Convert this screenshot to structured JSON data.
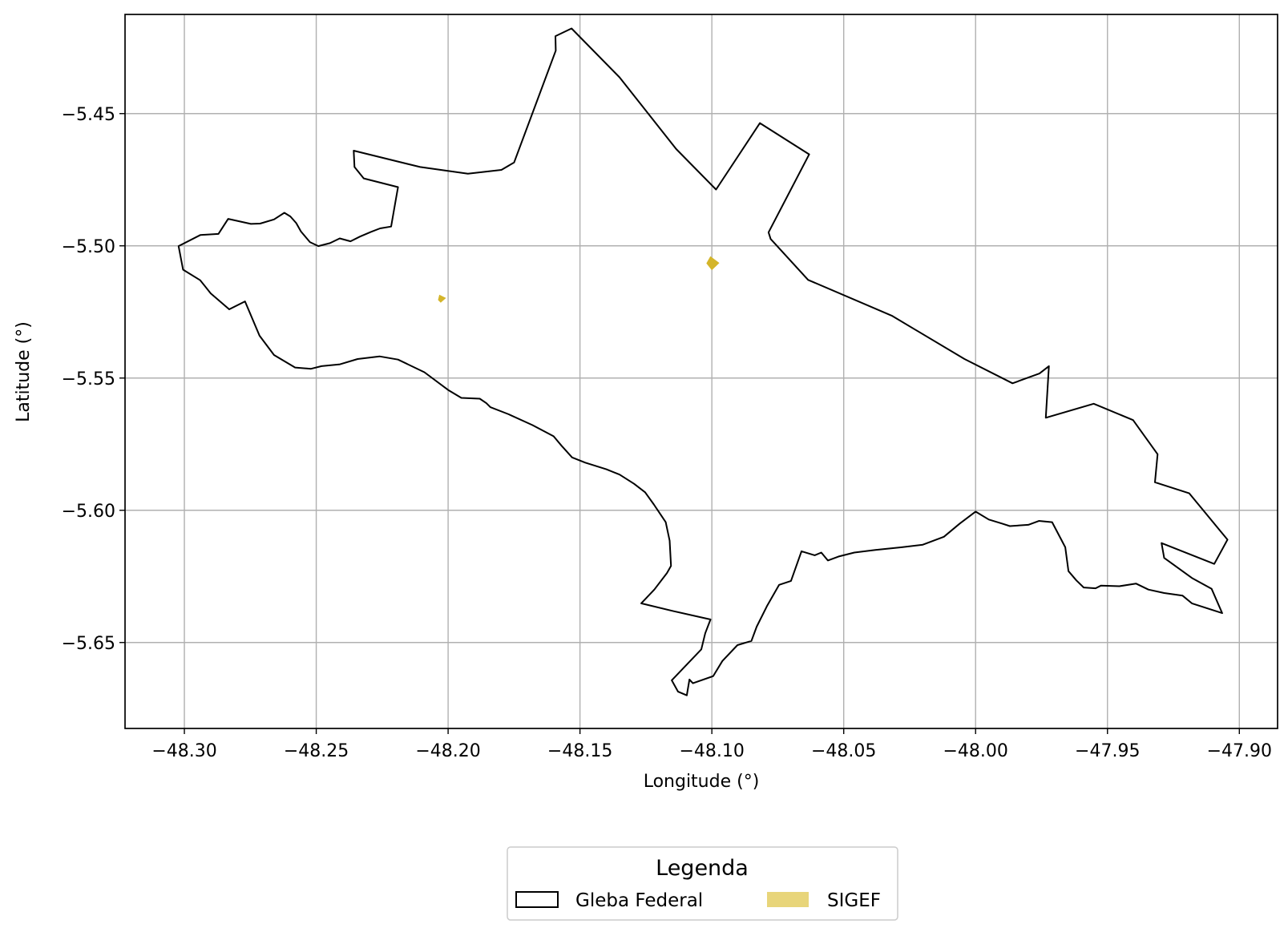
{
  "map": {
    "xlabel": "Longitude (°)",
    "ylabel": "Latitude (°)",
    "xlim": [
      -48.3225,
      -47.8855
    ],
    "ylim": [
      -5.6825,
      -5.4125
    ],
    "x_ticks": [
      -48.3,
      -48.25,
      -48.2,
      -48.15,
      -48.1,
      -48.05,
      -48.0,
      -47.95,
      -47.9
    ],
    "x_tick_labels": [
      "−48.30",
      "−48.25",
      "−48.20",
      "−48.15",
      "−48.10",
      "−48.05",
      "−48.00",
      "−47.95",
      "−47.90"
    ],
    "y_ticks": [
      -5.45,
      -5.5,
      -5.55,
      -5.6,
      -5.65
    ],
    "y_tick_labels": [
      "−5.45",
      "−5.50",
      "−5.55",
      "−5.60",
      "−5.65"
    ],
    "grid": true,
    "colors": {
      "boundary": "#000000",
      "sigef": "#d4b52a",
      "sigef_legend": "#e8d57a",
      "grid": "#b0b0b0"
    }
  },
  "legend": {
    "title": "Legenda",
    "placement": "bottom-center",
    "items": [
      {
        "label": "Gleba Federal",
        "symbol": "outline-rectangle"
      },
      {
        "label": "SIGEF",
        "symbol": "filled-rectangle"
      }
    ]
  },
  "layers": {
    "gleba_federal": {
      "name": "Gleba Federal",
      "coordinates": [
        [
          -48.3022,
          -5.5001
        ],
        [
          -48.2939,
          -5.4959
        ],
        [
          -48.2871,
          -5.4955
        ],
        [
          -48.2834,
          -5.4898
        ],
        [
          -48.2748,
          -5.4917
        ],
        [
          -48.2713,
          -5.4916
        ],
        [
          -48.266,
          -5.49
        ],
        [
          -48.2621,
          -5.4875
        ],
        [
          -48.2598,
          -5.4889
        ],
        [
          -48.2576,
          -5.4914
        ],
        [
          -48.2558,
          -5.4946
        ],
        [
          -48.2524,
          -5.4986
        ],
        [
          -48.2492,
          -5.5001
        ],
        [
          -48.2448,
          -5.499
        ],
        [
          -48.2411,
          -5.4972
        ],
        [
          -48.237,
          -5.4983
        ],
        [
          -48.2334,
          -5.4965
        ],
        [
          -48.2292,
          -5.4947
        ],
        [
          -48.2258,
          -5.4934
        ],
        [
          -48.2216,
          -5.4927
        ],
        [
          -48.2205,
          -5.4864
        ],
        [
          -48.219,
          -5.4778
        ],
        [
          -48.232,
          -5.4745
        ],
        [
          -48.2355,
          -5.4702
        ],
        [
          -48.2358,
          -5.464
        ],
        [
          -48.2106,
          -5.4702
        ],
        [
          -48.1925,
          -5.4727
        ],
        [
          -48.1798,
          -5.4713
        ],
        [
          -48.175,
          -5.4685
        ],
        [
          -48.1592,
          -5.4262
        ],
        [
          -48.1593,
          -5.4207
        ],
        [
          -48.1532,
          -5.4178
        ],
        [
          -48.135,
          -5.4363
        ],
        [
          -48.1135,
          -5.4634
        ],
        [
          -48.0984,
          -5.4787
        ],
        [
          -48.0818,
          -5.4536
        ],
        [
          -48.0631,
          -5.4654
        ],
        [
          -48.0785,
          -5.4949
        ],
        [
          -48.0777,
          -5.4974
        ],
        [
          -48.0635,
          -5.5129
        ],
        [
          -48.0318,
          -5.5264
        ],
        [
          -48.0042,
          -5.5428
        ],
        [
          -47.986,
          -5.552
        ],
        [
          -47.9758,
          -5.5483
        ],
        [
          -47.9722,
          -5.5455
        ],
        [
          -47.9734,
          -5.565
        ],
        [
          -47.9552,
          -5.5597
        ],
        [
          -47.9403,
          -5.5659
        ],
        [
          -47.931,
          -5.5788
        ],
        [
          -47.932,
          -5.5894
        ],
        [
          -47.919,
          -5.5936
        ],
        [
          -47.9045,
          -5.6111
        ],
        [
          -47.9095,
          -5.6203
        ],
        [
          -47.9295,
          -5.6124
        ],
        [
          -47.9285,
          -5.618
        ],
        [
          -47.918,
          -5.6256
        ],
        [
          -47.9105,
          -5.6297
        ],
        [
          -47.9065,
          -5.6389
        ],
        [
          -47.918,
          -5.6352
        ],
        [
          -47.9215,
          -5.6323
        ],
        [
          -47.9285,
          -5.6313
        ],
        [
          -47.9345,
          -5.63
        ],
        [
          -47.9392,
          -5.6277
        ],
        [
          -47.9455,
          -5.6287
        ],
        [
          -47.9525,
          -5.6285
        ],
        [
          -47.9545,
          -5.6295
        ],
        [
          -47.959,
          -5.6292
        ],
        [
          -47.9618,
          -5.6265
        ],
        [
          -47.9648,
          -5.623
        ],
        [
          -47.966,
          -5.614
        ],
        [
          -47.971,
          -5.6045
        ],
        [
          -47.976,
          -5.604
        ],
        [
          -47.98,
          -5.6055
        ],
        [
          -47.987,
          -5.606
        ],
        [
          -47.99,
          -5.605
        ],
        [
          -47.995,
          -5.6035
        ],
        [
          -48.0,
          -5.6005
        ],
        [
          -48.006,
          -5.605
        ],
        [
          -48.012,
          -5.61
        ],
        [
          -48.02,
          -5.613
        ],
        [
          -48.028,
          -5.614
        ],
        [
          -48.038,
          -5.615
        ],
        [
          -48.046,
          -5.616
        ],
        [
          -48.052,
          -5.6175
        ],
        [
          -48.056,
          -5.619
        ],
        [
          -48.0585,
          -5.616
        ],
        [
          -48.061,
          -5.617
        ],
        [
          -48.066,
          -5.6155
        ],
        [
          -48.07,
          -5.6267
        ],
        [
          -48.0745,
          -5.6282
        ],
        [
          -48.079,
          -5.636
        ],
        [
          -48.083,
          -5.644
        ],
        [
          -48.085,
          -5.6494
        ],
        [
          -48.0903,
          -5.651
        ],
        [
          -48.096,
          -5.657
        ],
        [
          -48.0995,
          -5.6627
        ],
        [
          -48.1072,
          -5.6654
        ],
        [
          -48.1085,
          -5.664
        ],
        [
          -48.1095,
          -5.67
        ],
        [
          -48.1128,
          -5.6686
        ],
        [
          -48.1152,
          -5.6643
        ],
        [
          -48.104,
          -5.6526
        ],
        [
          -48.1025,
          -5.6465
        ],
        [
          -48.1005,
          -5.6413
        ],
        [
          -48.1143,
          -5.6382
        ],
        [
          -48.1268,
          -5.6352
        ],
        [
          -48.1218,
          -5.63
        ],
        [
          -48.117,
          -5.6237
        ],
        [
          -48.1155,
          -5.621
        ],
        [
          -48.116,
          -5.6115
        ],
        [
          -48.1175,
          -5.6045
        ],
        [
          -48.122,
          -5.5978
        ],
        [
          -48.1253,
          -5.5932
        ],
        [
          -48.1295,
          -5.59
        ],
        [
          -48.135,
          -5.5865
        ],
        [
          -48.14,
          -5.5845
        ],
        [
          -48.148,
          -5.582
        ],
        [
          -48.153,
          -5.58
        ],
        [
          -48.157,
          -5.5756
        ],
        [
          -48.16,
          -5.572
        ],
        [
          -48.168,
          -5.5678
        ],
        [
          -48.177,
          -5.5637
        ],
        [
          -48.184,
          -5.561
        ],
        [
          -48.1855,
          -5.5595
        ],
        [
          -48.188,
          -5.5578
        ],
        [
          -48.195,
          -5.5575
        ],
        [
          -48.2,
          -5.5545
        ],
        [
          -48.209,
          -5.5478
        ],
        [
          -48.219,
          -5.543
        ],
        [
          -48.226,
          -5.5418
        ],
        [
          -48.2343,
          -5.5428
        ],
        [
          -48.241,
          -5.5448
        ],
        [
          -48.248,
          -5.5455
        ],
        [
          -48.252,
          -5.5465
        ],
        [
          -48.258,
          -5.546
        ],
        [
          -48.266,
          -5.5413
        ],
        [
          -48.2715,
          -5.534
        ],
        [
          -48.277,
          -5.521
        ],
        [
          -48.283,
          -5.524
        ],
        [
          -48.29,
          -5.518
        ],
        [
          -48.294,
          -5.513
        ],
        [
          -48.3005,
          -5.509
        ]
      ]
    },
    "sigef": {
      "name": "SIGEF",
      "parcels": [
        [
          [
            -48.2032,
            -5.5188
          ],
          [
            -48.2012,
            -5.5198
          ],
          [
            -48.2028,
            -5.5212
          ],
          [
            -48.2036,
            -5.5204
          ]
        ],
        [
          [
            -48.1005,
            -5.5043
          ],
          [
            -48.0975,
            -5.5065
          ],
          [
            -48.1,
            -5.5089
          ],
          [
            -48.1018,
            -5.5066
          ]
        ]
      ]
    }
  }
}
